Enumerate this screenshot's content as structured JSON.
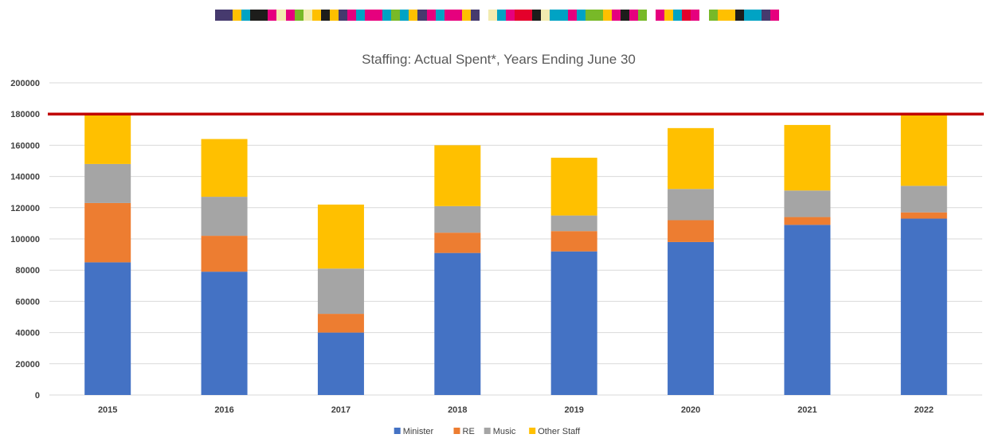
{
  "decor": {
    "strip_colors": [
      "#463A6E",
      "#463A6E",
      "#FFC000",
      "#00A3C4",
      "#1D1D1B",
      "#1D1D1B",
      "#E6007E",
      "#F2EBAF",
      "#E6007E",
      "#78B928",
      "#F2EBAF",
      "#FFC000",
      "#1D1D1B",
      "#FFC000",
      "#463A6E",
      "#E6007E",
      "#00A3C4",
      "#E6007E",
      "#E6007E",
      "#00A3C4",
      "#78B928",
      "#00A3C4",
      "#FFC000",
      "#463A6E",
      "#E6007E",
      "#00A3C4",
      "#E6007E",
      "#E6007E",
      "#FFC000",
      "#463A6E",
      "#FFFFFF",
      "#F2EBAF",
      "#00A3C4",
      "#E6007E",
      "#E4002B",
      "#E4002B",
      "#1D1D1B",
      "#F2EBAF",
      "#00A3C4",
      "#00A3C4",
      "#E6007E",
      "#00A3C4",
      "#78B928",
      "#78B928",
      "#FFC000",
      "#E6007E",
      "#1D1D1B",
      "#E6007E",
      "#78B928",
      "#FFFFFF",
      "#E6007E",
      "#FFC000",
      "#00A3C4",
      "#E4002B",
      "#E6007E",
      "#FFFFFF",
      "#78B928",
      "#FFC000",
      "#FFC000",
      "#1D1D1B",
      "#00A3C4",
      "#00A3C4",
      "#463A6E",
      "#E6007E"
    ]
  },
  "chart_data": {
    "type": "bar",
    "stacked": true,
    "title": "Staffing: Actual Spent*, Years Ending June 30",
    "xlabel": "",
    "ylabel": "",
    "categories": [
      "2015",
      "2016",
      "2017",
      "2018",
      "2019",
      "2020",
      "2021",
      "2022"
    ],
    "ylim": [
      0,
      200000
    ],
    "yticks": [
      0,
      20000,
      40000,
      60000,
      80000,
      100000,
      120000,
      140000,
      160000,
      180000,
      200000
    ],
    "series": [
      {
        "name": "Minister",
        "color": "#4472C4",
        "values": [
          85000,
          79000,
          40000,
          91000,
          92000,
          98000,
          109000,
          113000
        ]
      },
      {
        "name": "RE",
        "color": "#ED7D31",
        "values": [
          38000,
          23000,
          12000,
          13000,
          13000,
          14000,
          5000,
          4000
        ]
      },
      {
        "name": "Music",
        "color": "#A5A5A5",
        "values": [
          25000,
          25000,
          29000,
          17000,
          10000,
          20000,
          17000,
          17000
        ]
      },
      {
        "name": "Other Staff",
        "color": "#FFC000",
        "values": [
          32000,
          37000,
          41000,
          39000,
          37000,
          39000,
          42000,
          46000
        ]
      }
    ],
    "reference_line": {
      "value": 180000,
      "color": "#C00000"
    },
    "grid": true,
    "legend_position": "bottom"
  }
}
